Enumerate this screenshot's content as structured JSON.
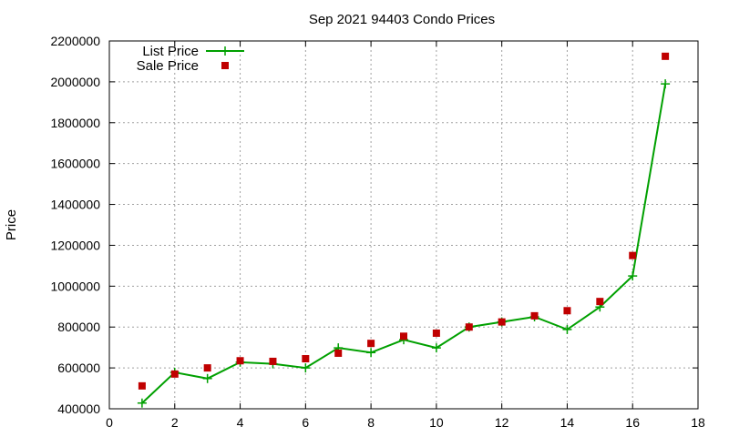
{
  "chart_data": {
    "type": "line",
    "title": "Sep 2021 94403 Condo Prices",
    "xlabel": "",
    "ylabel": "Price",
    "xlim": [
      0,
      18
    ],
    "ylim": [
      400000,
      2200000
    ],
    "xticks": [
      "0",
      "2",
      "4",
      "6",
      "8",
      "10",
      "12",
      "14",
      "16",
      "18"
    ],
    "yticks": [
      "400000",
      "600000",
      "800000",
      "1000000",
      "1200000",
      "1400000",
      "1600000",
      "1800000",
      "2000000",
      "2200000"
    ],
    "grid": true,
    "legend_position": "top-left",
    "x": [
      1,
      2,
      3,
      4,
      5,
      6,
      7,
      8,
      9,
      10,
      11,
      12,
      13,
      14,
      15,
      16,
      17
    ],
    "series": [
      {
        "name": "List Price",
        "kind": "line-points",
        "color": "#00a000",
        "values": [
          428000,
          578000,
          548000,
          628000,
          620000,
          600000,
          698000,
          675000,
          738000,
          698000,
          800000,
          825000,
          850000,
          788000,
          898000,
          1050000,
          1990000
        ]
      },
      {
        "name": "Sale Price",
        "kind": "points",
        "color": "#c00000",
        "values": [
          512000,
          570000,
          600000,
          635000,
          632000,
          645000,
          672000,
          720000,
          755000,
          770000,
          800000,
          825000,
          855000,
          880000,
          925000,
          1150000,
          2125000
        ]
      }
    ]
  }
}
